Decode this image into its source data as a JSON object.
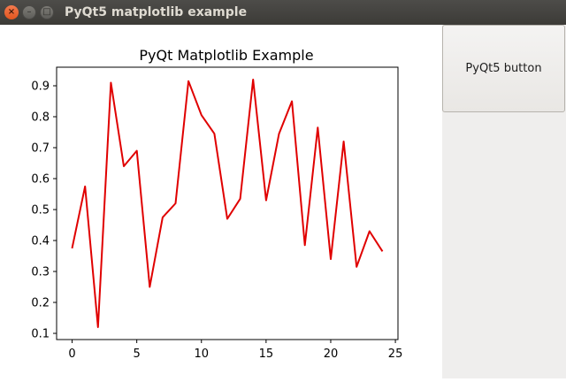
{
  "window": {
    "title": "PyQt5 matplotlib example",
    "close_glyph": "×",
    "minimize_glyph": "–",
    "maximize_glyph": "□"
  },
  "button": {
    "label": "PyQt5 button"
  },
  "chart_data": {
    "type": "line",
    "title": "PyQt Matplotlib Example",
    "xlabel": "",
    "ylabel": "",
    "xlim": [
      -1.2,
      25.2
    ],
    "ylim": [
      0.08,
      0.96
    ],
    "xticks": [
      0,
      5,
      10,
      15,
      20,
      25
    ],
    "yticks": [
      0.1,
      0.2,
      0.3,
      0.4,
      0.5,
      0.6,
      0.7,
      0.8,
      0.9
    ],
    "grid": false,
    "line_color": "#e00000",
    "x": [
      0,
      1,
      2,
      3,
      4,
      5,
      6,
      7,
      8,
      9,
      10,
      11,
      12,
      13,
      14,
      15,
      16,
      17,
      18,
      19,
      20,
      21,
      22,
      23,
      24
    ],
    "y": [
      0.375,
      0.575,
      0.12,
      0.91,
      0.64,
      0.69,
      0.25,
      0.475,
      0.52,
      0.915,
      0.805,
      0.745,
      0.47,
      0.535,
      0.92,
      0.53,
      0.745,
      0.85,
      0.385,
      0.765,
      0.34,
      0.72,
      0.315,
      0.43,
      0.365
    ]
  }
}
